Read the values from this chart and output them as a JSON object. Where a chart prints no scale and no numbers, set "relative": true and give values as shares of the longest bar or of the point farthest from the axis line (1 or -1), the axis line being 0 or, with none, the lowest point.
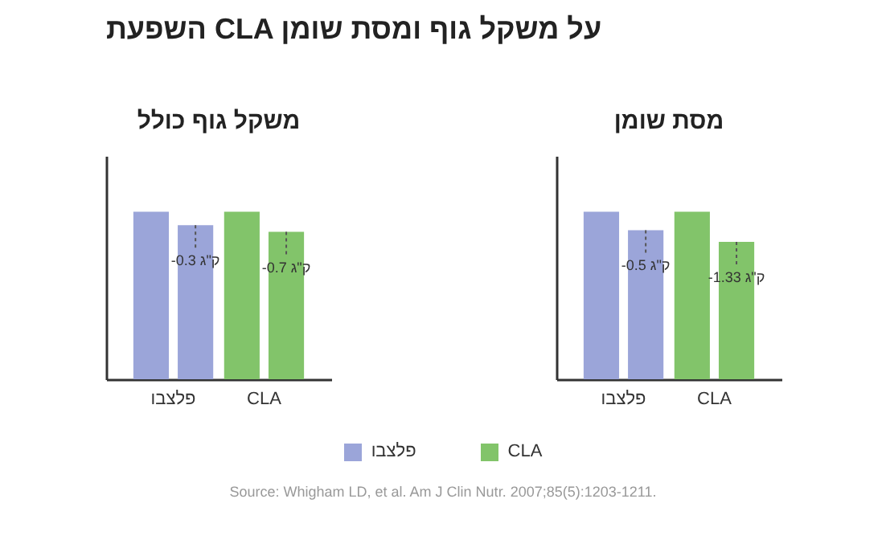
{
  "chart_data": [
    {
      "type": "other",
      "title": "השפעת CLA על משקל גוף ומסת שומן",
      "annotations": [
        "Source: Whigham LD, et al. Am J Clin Nutr. 2007;85(5):1203-1211."
      ]
    },
    {
      "type": "bar",
      "title": "משקל גוף כולל",
      "categories": [
        "פלצבו",
        "CLA"
      ],
      "relative": true,
      "series": [
        {
          "values": [
            1,
            1
          ],
          "colors": [
            "#9ba5d9",
            "#82c46a"
          ]
        },
        {
          "values": [
            0.92,
            0.88
          ],
          "colors": [
            "#9ba5d9",
            "#82c46a"
          ]
        }
      ],
      "annotations": [
        {
          "text": "-0.3 ק\"ג",
          "x": "פלצבו",
          "y": 0.92
        },
        {
          "text": "-0.7 ק\"ג",
          "x": "CLA",
          "y": 0.88
        }
      ]
    },
    {
      "type": "bar",
      "title": "מסת שומן",
      "categories": [
        "פלצבו",
        "CLA"
      ],
      "relative": true,
      "series": [
        {
          "values": [
            1,
            1
          ],
          "colors": [
            "#9ba5d9",
            "#82c46a"
          ]
        },
        {
          "values": [
            0.89,
            0.82
          ],
          "colors": [
            "#9ba5d9",
            "#82c46a"
          ]
        }
      ],
      "annotations": [
        {
          "text": "-0.5 ק\"ג",
          "x": "פלצבו",
          "y": 0.89
        },
        {
          "text": "-1.33 ק\"ג",
          "x": "CLA",
          "y": 0.82
        }
      ]
    }
  ]
}
